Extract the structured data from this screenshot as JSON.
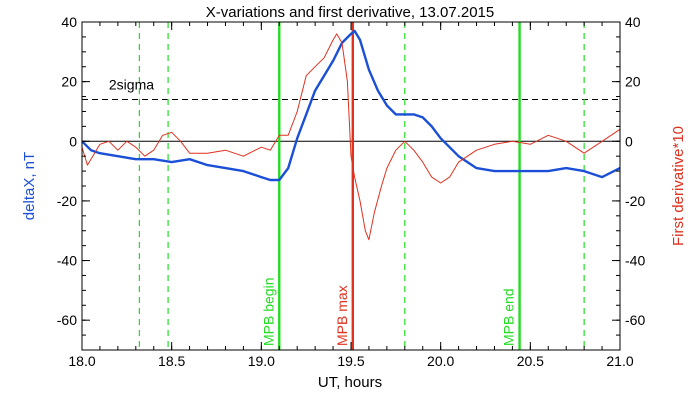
{
  "chart_data": {
    "type": "line",
    "title": "X-variations and first derivative, 13.07.2015",
    "xlabel": "UT, hours",
    "ylabel_left": "deltaX, nT",
    "ylabel_right": "First derivative*10",
    "xlim": [
      18.0,
      21.0
    ],
    "ylim": [
      -70,
      40
    ],
    "x_ticks": [
      18.0,
      18.5,
      19.0,
      19.5,
      20.0,
      20.5,
      21.0
    ],
    "x_tick_labels": [
      "18.0",
      "18.5",
      "19.0",
      "19.5",
      "20.0",
      "20.5",
      "21.0"
    ],
    "y_ticks": [
      -60,
      -40,
      -20,
      0,
      20,
      40
    ],
    "y_tick_labels": [
      "-60",
      "-40",
      "-20",
      "0",
      "20",
      "40"
    ],
    "grid": false,
    "colors": {
      "deltaX": "#1a4fd6",
      "derivative": "#e0301e",
      "mpb_solid": "#22dd22",
      "mpb_dashed": "#22dd22",
      "max_line": "#e0301e",
      "axis": "#000000",
      "left_label": "#1a4fd6",
      "right_label": "#e0301e"
    },
    "series": [
      {
        "key": "deltaX",
        "x": [
          18.0,
          18.05,
          18.1,
          18.2,
          18.3,
          18.4,
          18.5,
          18.6,
          18.7,
          18.8,
          18.9,
          19.0,
          19.05,
          19.1,
          19.15,
          19.2,
          19.25,
          19.3,
          19.35,
          19.4,
          19.45,
          19.5,
          19.52,
          19.55,
          19.6,
          19.65,
          19.7,
          19.75,
          19.8,
          19.85,
          19.9,
          19.95,
          20.0,
          20.05,
          20.1,
          20.2,
          20.3,
          20.4,
          20.5,
          20.6,
          20.7,
          20.8,
          20.9,
          21.0
        ],
        "values": [
          0,
          -3,
          -4,
          -5,
          -6,
          -6,
          -7,
          -6,
          -8,
          -9,
          -10,
          -12,
          -13,
          -13,
          -9,
          1,
          9,
          17,
          22,
          27,
          33,
          36,
          37,
          34,
          24,
          17,
          12,
          9,
          9,
          9,
          8,
          5,
          1,
          -2,
          -5,
          -9,
          -10,
          -10,
          -10,
          -10,
          -9,
          -10,
          -12,
          -9
        ]
      },
      {
        "key": "derivative",
        "x": [
          18.0,
          18.03,
          18.06,
          18.1,
          18.15,
          18.2,
          18.25,
          18.3,
          18.35,
          18.4,
          18.45,
          18.5,
          18.55,
          18.6,
          18.7,
          18.8,
          18.9,
          19.0,
          19.05,
          19.1,
          19.15,
          19.2,
          19.25,
          19.3,
          19.35,
          19.4,
          19.42,
          19.45,
          19.48,
          19.5,
          19.52,
          19.55,
          19.58,
          19.6,
          19.63,
          19.67,
          19.7,
          19.75,
          19.8,
          19.85,
          19.9,
          19.95,
          20.0,
          20.05,
          20.1,
          20.2,
          20.3,
          20.4,
          20.5,
          20.6,
          20.7,
          20.8,
          20.9,
          21.0
        ],
        "values": [
          -2,
          -8,
          -5,
          -1,
          0,
          -3,
          0,
          -2,
          -5,
          -3,
          2,
          3,
          0,
          -4,
          -4,
          -3,
          -5,
          -2,
          -3,
          2,
          2,
          10,
          22,
          25,
          28,
          34,
          36,
          33,
          20,
          -5,
          -12,
          -20,
          -30,
          -33,
          -24,
          -15,
          -9,
          -3,
          0,
          -3,
          -7,
          -12,
          -14,
          -12,
          -7,
          -3,
          -1,
          0,
          -1,
          2,
          0,
          -4,
          0,
          4
        ]
      }
    ],
    "threshold": {
      "label": "2sigma",
      "value": 14
    },
    "zero_line": 0,
    "vertical_lines": [
      {
        "x": 18.32,
        "style": "dashed",
        "color": "#22dd22"
      },
      {
        "x": 18.48,
        "style": "dashed",
        "color": "#22dd22"
      },
      {
        "x": 19.1,
        "style": "solid",
        "color": "#22dd22",
        "label": "MPB begin"
      },
      {
        "x": 19.51,
        "style": "solid",
        "color": "#e0301e",
        "label": "MPB max"
      },
      {
        "x": 19.8,
        "style": "dashed",
        "color": "#22dd22"
      },
      {
        "x": 20.44,
        "style": "solid",
        "color": "#22dd22",
        "label": "MPB end"
      },
      {
        "x": 20.8,
        "style": "dashed",
        "color": "#22dd22"
      }
    ]
  }
}
